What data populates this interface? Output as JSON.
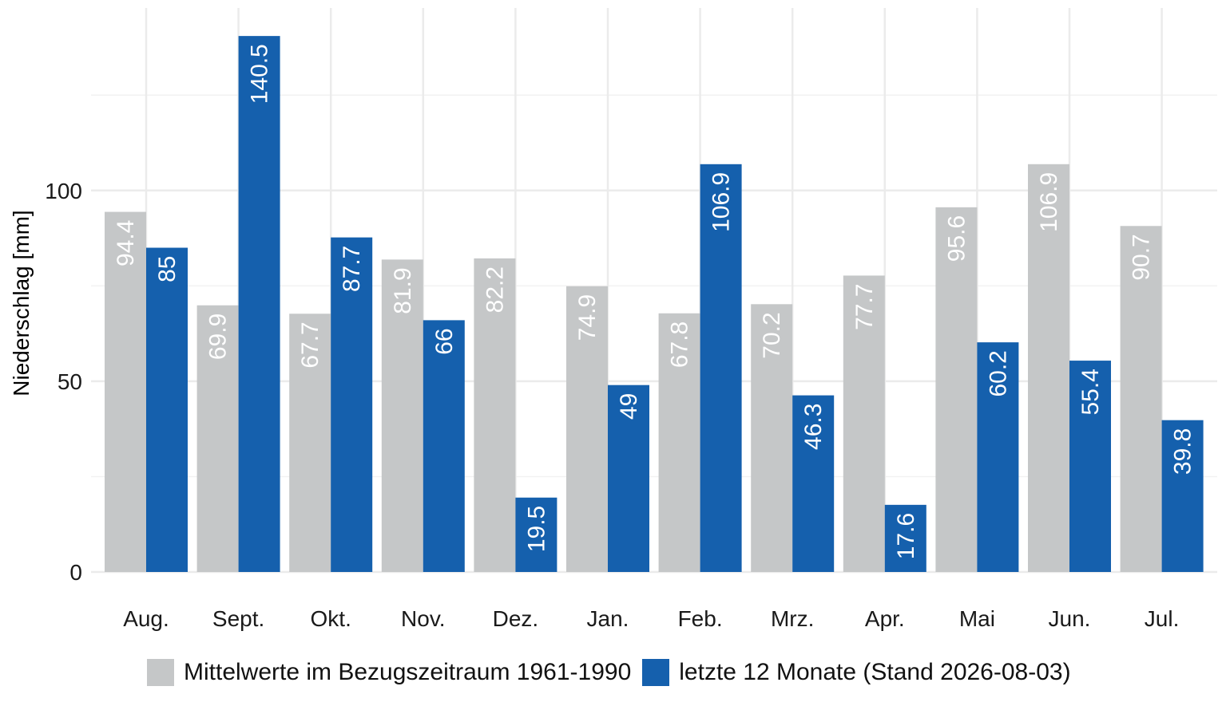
{
  "chart_data": {
    "type": "bar",
    "ylabel": "Niederschlag [mm]",
    "xlabel": "",
    "ylim": [
      0,
      146
    ],
    "yticks": [
      0,
      50,
      100
    ],
    "grid": true,
    "legend_position": "bottom",
    "categories": [
      "Aug.",
      "Sept.",
      "Okt.",
      "Nov.",
      "Dez.",
      "Jan.",
      "Feb.",
      "Mrz.",
      "Apr.",
      "Mai",
      "Jun.",
      "Jul."
    ],
    "series": [
      {
        "name": "Mittelwerte im Bezugszeitraum 1961-1990",
        "color": "#c5c7c8",
        "values": [
          94.4,
          69.9,
          67.7,
          81.9,
          82.2,
          74.9,
          67.8,
          70.2,
          77.7,
          95.6,
          106.9,
          90.7
        ],
        "labels": [
          "94.4",
          "69.9",
          "67.7",
          "81.9",
          "82.2",
          "74.9",
          "67.8",
          "70.2",
          "77.7",
          "95.6",
          "106.9",
          "90.7"
        ]
      },
      {
        "name": "letzte 12 Monate (Stand 2026-08-03)",
        "color": "#1560ad",
        "values": [
          85,
          140.5,
          87.7,
          66,
          19.5,
          49,
          106.9,
          46.3,
          17.6,
          60.2,
          55.4,
          39.8
        ],
        "labels": [
          "85",
          "140.5",
          "87.7",
          "66",
          "19.5",
          "49",
          "106.9",
          "46.3",
          "17.6",
          "60.2",
          "55.4",
          "39.8"
        ]
      }
    ]
  }
}
